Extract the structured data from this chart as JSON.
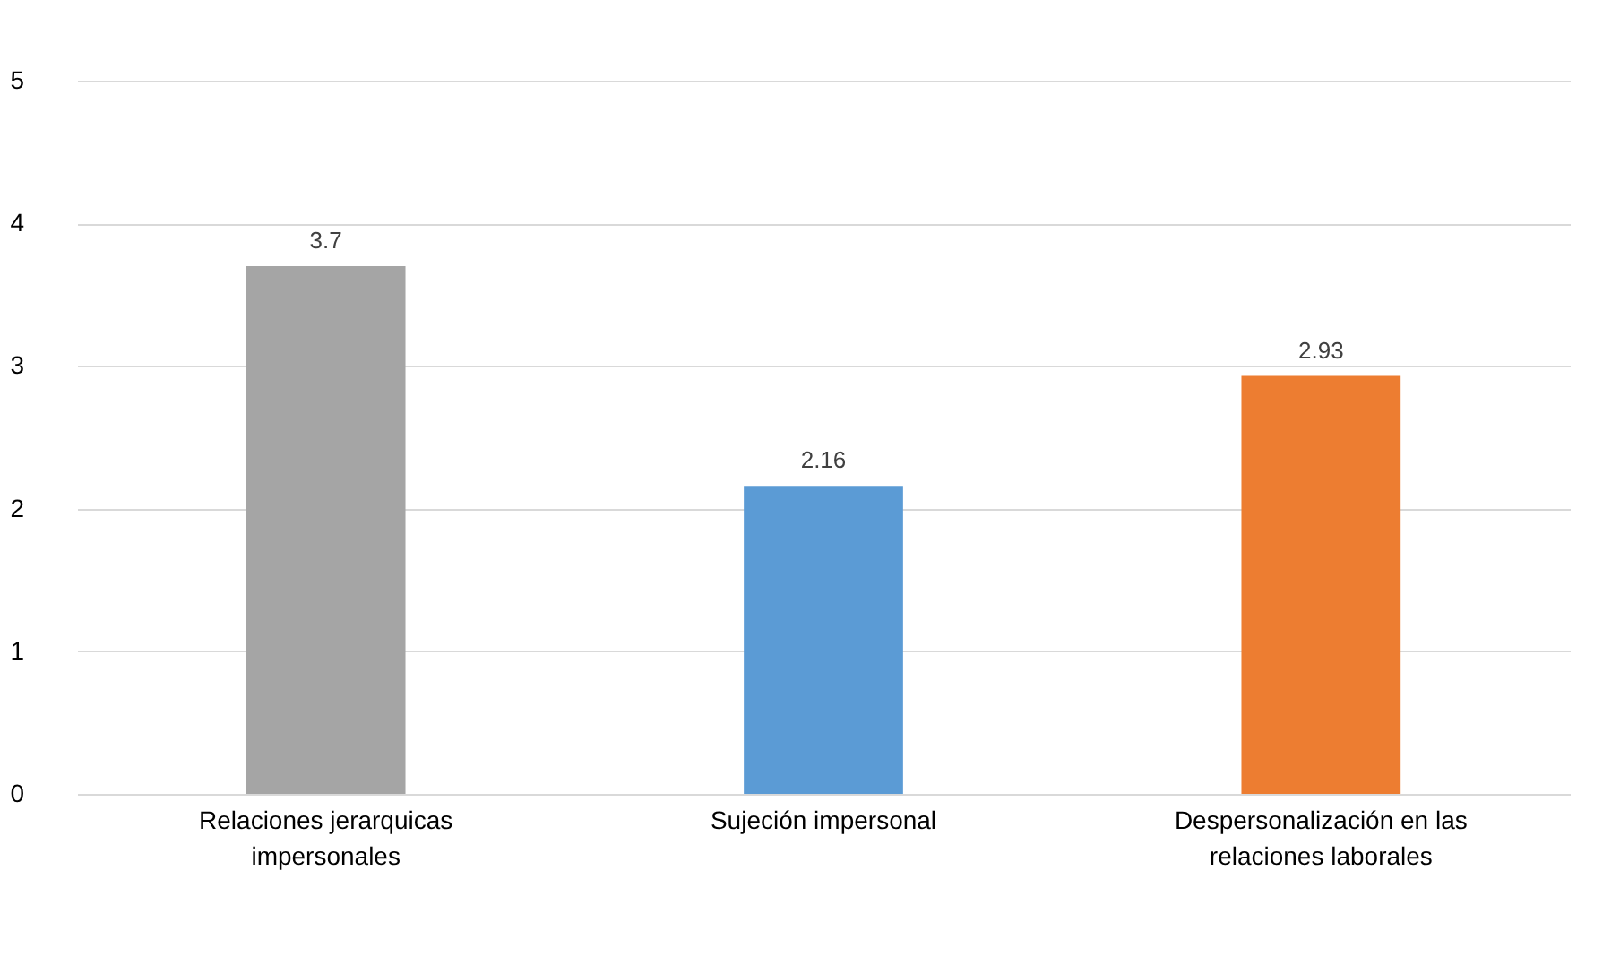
{
  "chart_data": {
    "type": "bar",
    "categories": [
      "Relaciones  jerarquicas impersonales",
      "Sujeción impersonal",
      "Despersonalización en las relaciones laborales"
    ],
    "values": [
      3.7,
      2.16,
      2.93
    ],
    "colors": [
      "#a5a5a5",
      "#5b9bd5",
      "#ed7d31"
    ],
    "ylim": [
      0,
      5
    ],
    "yticks": [
      0,
      1,
      2,
      3,
      4,
      5
    ],
    "grid": "y",
    "data_labels": true,
    "legend": false
  }
}
